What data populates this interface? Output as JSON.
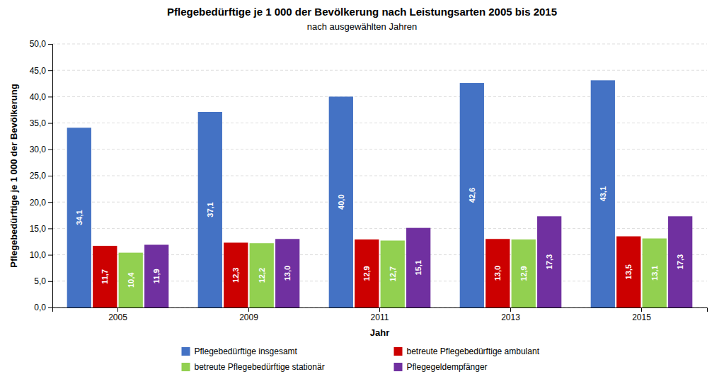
{
  "chart_data": {
    "type": "bar",
    "title": "Pflegebedürftige je 1 000 der Bevölkerung nach Leistungsarten 2005 bis 2015",
    "subtitle": "nach ausgewählten Jahren",
    "xlabel": "Jahr",
    "ylabel": "Pflegebedürftige je 1 000 der Bevölkerung",
    "categories": [
      "2005",
      "2009",
      "2011",
      "2013",
      "2015"
    ],
    "series": [
      {
        "name": "Pflegebedürftige insgesamt",
        "color": "#4472C4",
        "values": [
          34.1,
          37.1,
          40.0,
          42.6,
          43.1
        ],
        "value_labels": [
          "34,1",
          "37,1",
          "40,0",
          "42,6",
          "43,1"
        ]
      },
      {
        "name": "betreute Pflegebedürftige ambulant",
        "color": "#CC0000",
        "values": [
          11.7,
          12.3,
          12.9,
          13.0,
          13.5
        ],
        "value_labels": [
          "11,7",
          "12,3",
          "12,9",
          "13,0",
          "13,5"
        ]
      },
      {
        "name": "betreute Pflegebedürftige stationär",
        "color": "#92D050",
        "values": [
          10.4,
          12.2,
          12.7,
          12.9,
          13.1
        ],
        "value_labels": [
          "10,4",
          "12,2",
          "12,7",
          "12,9",
          "13,1"
        ]
      },
      {
        "name": "Pflegegeldempfänger",
        "color": "#7030A0",
        "values": [
          11.9,
          13.0,
          15.1,
          17.3,
          17.3
        ],
        "value_labels": [
          "11,9",
          "13,0",
          "15,1",
          "17,3",
          "17,3"
        ]
      }
    ],
    "ylim": [
      0,
      50
    ],
    "yticks": [
      {
        "value": 0,
        "label": "0,0"
      },
      {
        "value": 5,
        "label": "5,0"
      },
      {
        "value": 10,
        "label": "10,0"
      },
      {
        "value": 15,
        "label": "15,0"
      },
      {
        "value": 20,
        "label": "20,0"
      },
      {
        "value": 25,
        "label": "25,0"
      },
      {
        "value": 30,
        "label": "30,0"
      },
      {
        "value": 35,
        "label": "35,0"
      },
      {
        "value": 40,
        "label": "40,0"
      },
      {
        "value": 45,
        "label": "45,0"
      },
      {
        "value": 50,
        "label": "50,0"
      }
    ],
    "grid": true,
    "data_labels": true,
    "legend": "bottom"
  }
}
